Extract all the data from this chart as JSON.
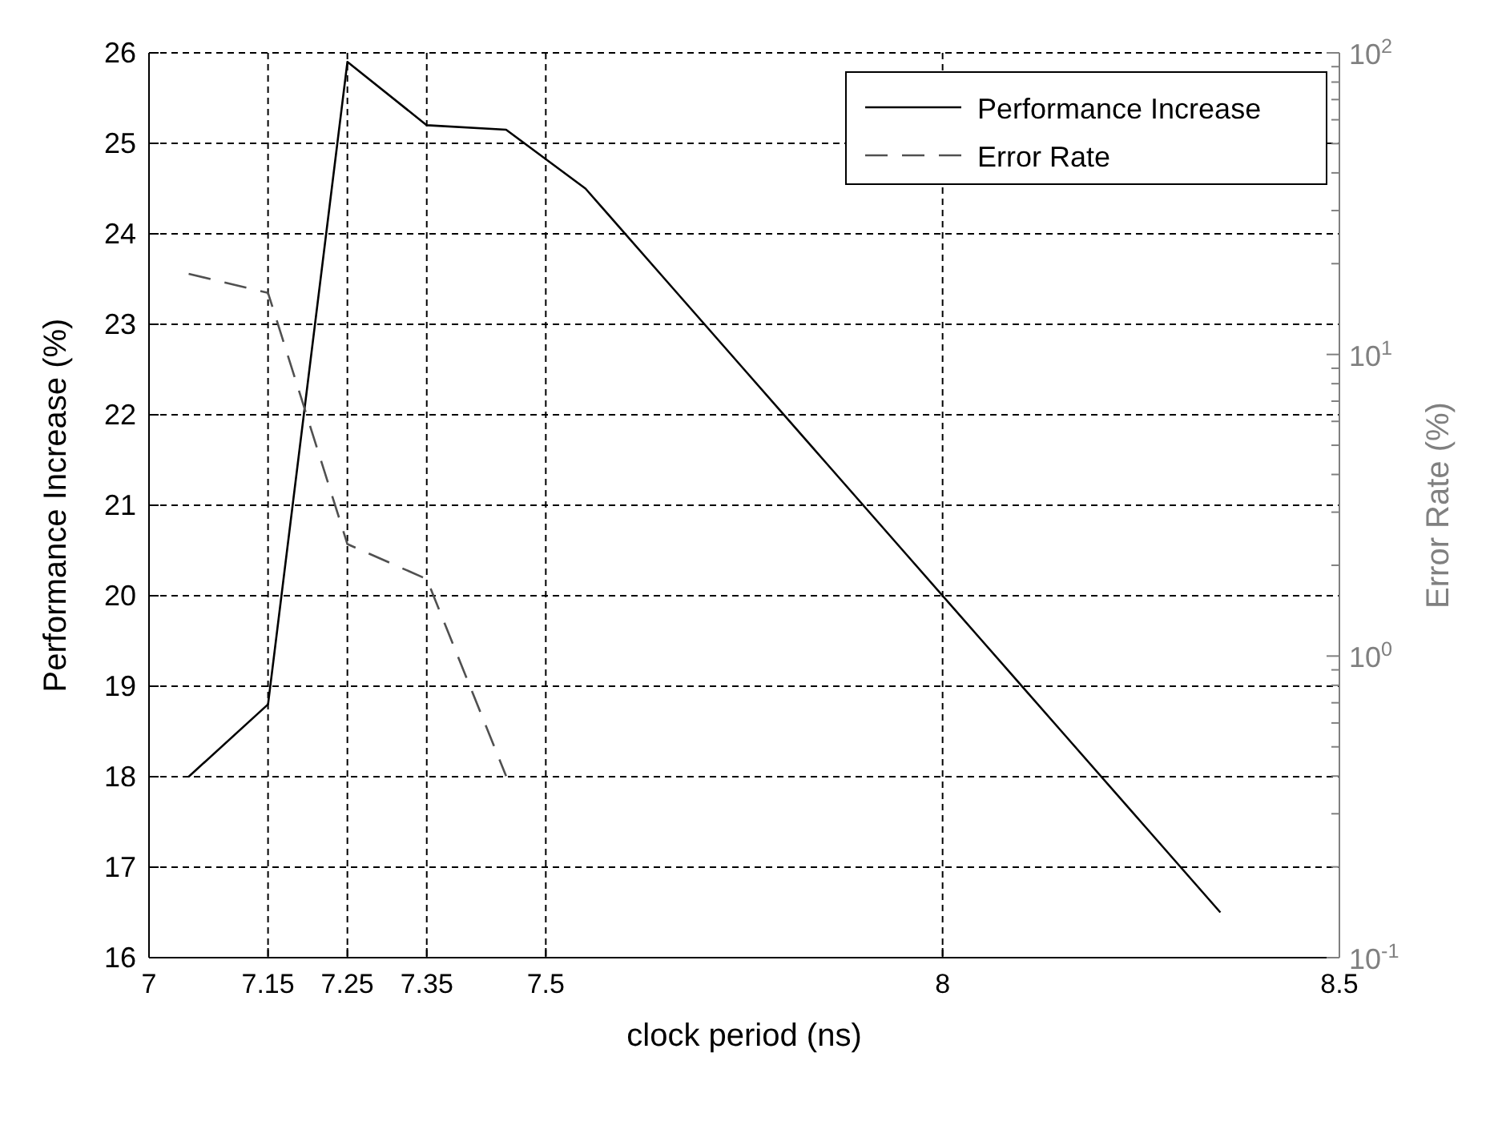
{
  "chart_data": {
    "type": "line",
    "xlabel": "clock period (ns)",
    "ylabel": "Performance Increase (%)",
    "y2label": "Error Rate (%)",
    "xlim": [
      7,
      8.5
    ],
    "xticks": [
      7,
      7.15,
      7.25,
      7.35,
      7.5,
      8,
      8.5
    ],
    "ylim": [
      16,
      26
    ],
    "yticks": [
      16,
      17,
      18,
      19,
      20,
      21,
      22,
      23,
      24,
      25,
      26
    ],
    "y2lim": [
      0.1,
      100
    ],
    "y2ticks": [
      {
        "value": 0.1,
        "label": "10$^{-1}$"
      },
      {
        "value": 0.2,
        "label": null
      },
      {
        "value": 0.3,
        "label": null
      },
      {
        "value": 0.4,
        "label": null
      },
      {
        "value": 0.5,
        "label": null
      },
      {
        "value": 0.6,
        "label": null
      },
      {
        "value": 0.7,
        "label": null
      },
      {
        "value": 0.8,
        "label": null
      },
      {
        "value": 0.9,
        "label": null
      },
      {
        "value": 1,
        "label": "10$^{0}$"
      },
      {
        "value": 2,
        "label": null
      },
      {
        "value": 3,
        "label": null
      },
      {
        "value": 4,
        "label": null
      },
      {
        "value": 5,
        "label": null
      },
      {
        "value": 6,
        "label": null
      },
      {
        "value": 7,
        "label": null
      },
      {
        "value": 8,
        "label": null
      },
      {
        "value": 9,
        "label": null
      },
      {
        "value": 10,
        "label": "10$^{1}$"
      },
      {
        "value": 20,
        "label": null
      },
      {
        "value": 30,
        "label": null
      },
      {
        "value": 40,
        "label": null
      },
      {
        "value": 50,
        "label": null
      },
      {
        "value": 60,
        "label": null
      },
      {
        "value": 70,
        "label": null
      },
      {
        "value": 80,
        "label": null
      },
      {
        "value": 90,
        "label": null
      },
      {
        "value": 100,
        "label": "10$^{2}$"
      }
    ],
    "log": "y2",
    "grid": true,
    "legend": "top right",
    "series": [
      {
        "name": "Performance Increase",
        "color": "#000000",
        "line_style": "solid",
        "x": [
          7.05,
          7.15,
          7.25,
          7.35,
          7.45,
          7.55,
          7.65,
          7.75,
          7.85,
          7.95,
          8.05,
          8.15,
          8.25,
          8.35
        ],
        "values": [
          18,
          18.8,
          25.9,
          25.2,
          25.15,
          24.5,
          23.5,
          22.5,
          21.5,
          20.5,
          19.5,
          18.5,
          17.5,
          16.5
        ]
      },
      {
        "name": "Error Rate",
        "color": "#505050",
        "line_style": "dashed",
        "axis": "y2",
        "x": [
          7.05,
          7.15,
          7.25,
          7.35,
          7.45
        ],
        "values": [
          18.5,
          16,
          2.35,
          1.8,
          0.4
        ]
      }
    ]
  }
}
